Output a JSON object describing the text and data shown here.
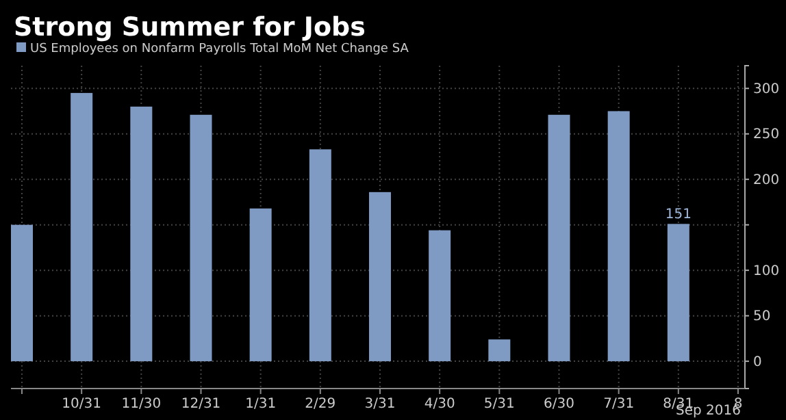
{
  "chart_data": {
    "type": "bar",
    "title": "Strong Summer for Jobs",
    "categories": [
      null,
      "10/31",
      "11/30",
      "12/31",
      "1/31",
      "2/29",
      "3/31",
      "4/30",
      "5/31",
      "6/30",
      "7/31",
      "8/31",
      "8"
    ],
    "series": [
      {
        "name": "US Employees on Nonfarm Payrolls Total MoM Net Change SA",
        "color": "#7f9bc4",
        "values": [
          150,
          295,
          280,
          271,
          168,
          233,
          186,
          144,
          24,
          271,
          275,
          151,
          null
        ],
        "value_labels": [
          null,
          null,
          null,
          null,
          null,
          null,
          null,
          null,
          null,
          null,
          null,
          "151",
          null
        ]
      }
    ],
    "ylim": [
      -30,
      325
    ],
    "yticks": [
      0,
      50,
      100,
      {
        "value": 150,
        "label": null
      },
      200,
      250,
      300
    ],
    "grid": true,
    "legend": "top left",
    "annotations": [
      "Sep 2016"
    ]
  }
}
